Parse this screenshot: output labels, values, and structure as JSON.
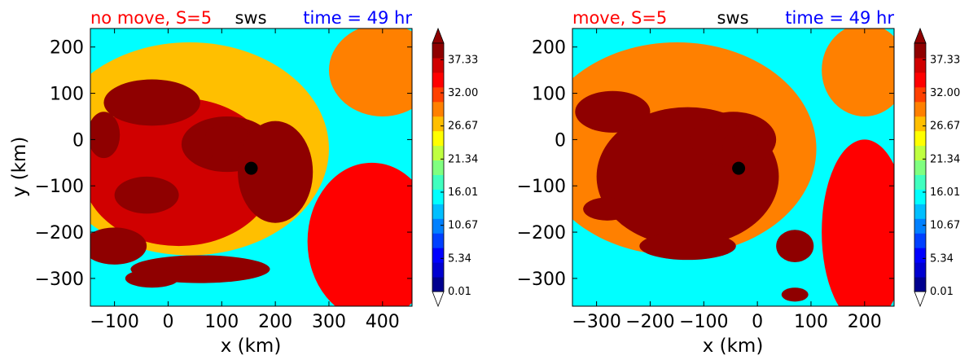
{
  "colors": {
    "title_left": "#ff0000",
    "title_center": "#000000",
    "title_right": "#0000ff"
  },
  "colormap": [
    "#00008f",
    "#0000d0",
    "#0000ff",
    "#0040ff",
    "#0080ff",
    "#00bfff",
    "#00ffff",
    "#40ffbf",
    "#80ff80",
    "#bfff40",
    "#ffff00",
    "#ffbf00",
    "#ff8000",
    "#ff4000",
    "#ff0000",
    "#d00000",
    "#8f0000"
  ],
  "chart_data": [
    {
      "type": "heatmap",
      "title_left": "no move, S=5",
      "title_center": "sws",
      "title_right": "time = 49 hr",
      "xlabel": "x (km)",
      "ylabel": "y (km)",
      "xlim": [
        -145,
        455
      ],
      "ylim": [
        -360,
        240
      ],
      "xticks": [
        -100,
        0,
        100,
        200,
        300,
        400
      ],
      "xticklabels": [
        "−100",
        "0",
        "100",
        "200",
        "300",
        "400"
      ],
      "yticks": [
        200,
        100,
        0,
        -100,
        -200,
        -300
      ],
      "yticklabels": [
        "200",
        "100",
        "0",
        "−100",
        "−200",
        "−300"
      ],
      "center_marker": {
        "x": 155,
        "y": -62
      },
      "colorbar": {
        "min": 0.01,
        "max": 40.0,
        "extend": "both",
        "ticks": [
          0.01,
          5.34,
          10.67,
          16.01,
          21.34,
          26.67,
          32.0,
          37.33
        ],
        "ticklabels": [
          "0.01",
          "5.34",
          "10.67",
          "16.01",
          "21.34",
          "26.67",
          "32.00",
          "37.33"
        ]
      },
      "background_value": 6,
      "features": [
        {
          "x": 40,
          "y": -20,
          "sx": 260,
          "sy": 230,
          "v": 5
        },
        {
          "x": 20,
          "y": -70,
          "sx": 180,
          "sy": 160,
          "v": 4
        },
        {
          "x": 110,
          "y": -10,
          "sx": 85,
          "sy": 60,
          "v": 6
        },
        {
          "x": 100,
          "y": -5,
          "sx": 60,
          "sy": 40,
          "v": 4
        },
        {
          "x": 110,
          "y": 10,
          "sx": 40,
          "sy": 20,
          "v": 2
        },
        {
          "x": 60,
          "y": -30,
          "sx": 25,
          "sy": 15,
          "v": 3
        },
        {
          "x": 200,
          "y": -70,
          "sx": 70,
          "sy": 110,
          "v": 3
        },
        {
          "x": -120,
          "y": 10,
          "sx": 30,
          "sy": 50,
          "v": 3
        },
        {
          "x": -30,
          "y": 80,
          "sx": 90,
          "sy": 50,
          "v": 2
        },
        {
          "x": 60,
          "y": -280,
          "sx": 130,
          "sy": 30,
          "v": 3
        },
        {
          "x": -30,
          "y": -300,
          "sx": 50,
          "sy": 20,
          "v": 3
        },
        {
          "x": -100,
          "y": -230,
          "sx": 60,
          "sy": 40,
          "v": 2
        },
        {
          "x": -40,
          "y": -120,
          "sx": 60,
          "sy": 40,
          "v": 2
        },
        {
          "x": 380,
          "y": -220,
          "sx": 120,
          "sy": 170,
          "v": -2
        },
        {
          "x": 400,
          "y": 150,
          "sx": 100,
          "sy": 100,
          "v": -2
        }
      ]
    },
    {
      "type": "heatmap",
      "title_left": "move, S=5",
      "title_center": "sws",
      "title_right": "time = 49 hr",
      "xlabel": "x (km)",
      "ylabel": "",
      "xlim": [
        -345,
        255
      ],
      "ylim": [
        -360,
        240
      ],
      "xticks": [
        -300,
        -200,
        -100,
        0,
        100,
        200
      ],
      "xticklabels": [
        "−300",
        "−200",
        "−100",
        "0",
        "100",
        "200"
      ],
      "yticks": [
        200,
        100,
        0,
        -100,
        -200,
        -300
      ],
      "yticklabels": [
        "200",
        "100",
        "0",
        "−100",
        "−200",
        "−300"
      ],
      "center_marker": {
        "x": -35,
        "y": -62
      },
      "colorbar": {
        "min": 0.01,
        "max": 40.0,
        "extend": "both",
        "ticks": [
          0.01,
          5.34,
          10.67,
          16.01,
          21.34,
          26.67,
          32.0,
          37.33
        ],
        "ticklabels": [
          "0.01",
          "5.34",
          "10.67",
          "16.01",
          "21.34",
          "26.67",
          "32.00",
          "37.33"
        ]
      },
      "background_value": 6,
      "features": [
        {
          "x": -150,
          "y": -20,
          "sx": 260,
          "sy": 230,
          "v": 6
        },
        {
          "x": -130,
          "y": -80,
          "sx": 170,
          "sy": 150,
          "v": 4
        },
        {
          "x": -45,
          "y": 0,
          "sx": 80,
          "sy": 60,
          "v": 6
        },
        {
          "x": -40,
          "y": 10,
          "sx": 40,
          "sy": 30,
          "v": 6
        },
        {
          "x": -50,
          "y": 20,
          "sx": 20,
          "sy": 12,
          "v": 4
        },
        {
          "x": -50,
          "y": -15,
          "sx": 15,
          "sy": 25,
          "v": 3
        },
        {
          "x": -270,
          "y": 60,
          "sx": 70,
          "sy": 45,
          "v": 3
        },
        {
          "x": -280,
          "y": -150,
          "sx": 45,
          "sy": 25,
          "v": 4
        },
        {
          "x": -130,
          "y": -230,
          "sx": 90,
          "sy": 30,
          "v": 3
        },
        {
          "x": -5,
          "y": -105,
          "sx": 20,
          "sy": 15,
          "v": 3
        },
        {
          "x": 70,
          "y": -230,
          "sx": 35,
          "sy": 35,
          "v": 3
        },
        {
          "x": 70,
          "y": -335,
          "sx": 25,
          "sy": 15,
          "v": 4
        },
        {
          "x": 200,
          "y": -200,
          "sx": 80,
          "sy": 200,
          "v": -2
        },
        {
          "x": 200,
          "y": 150,
          "sx": 80,
          "sy": 100,
          "v": -2
        }
      ]
    }
  ]
}
